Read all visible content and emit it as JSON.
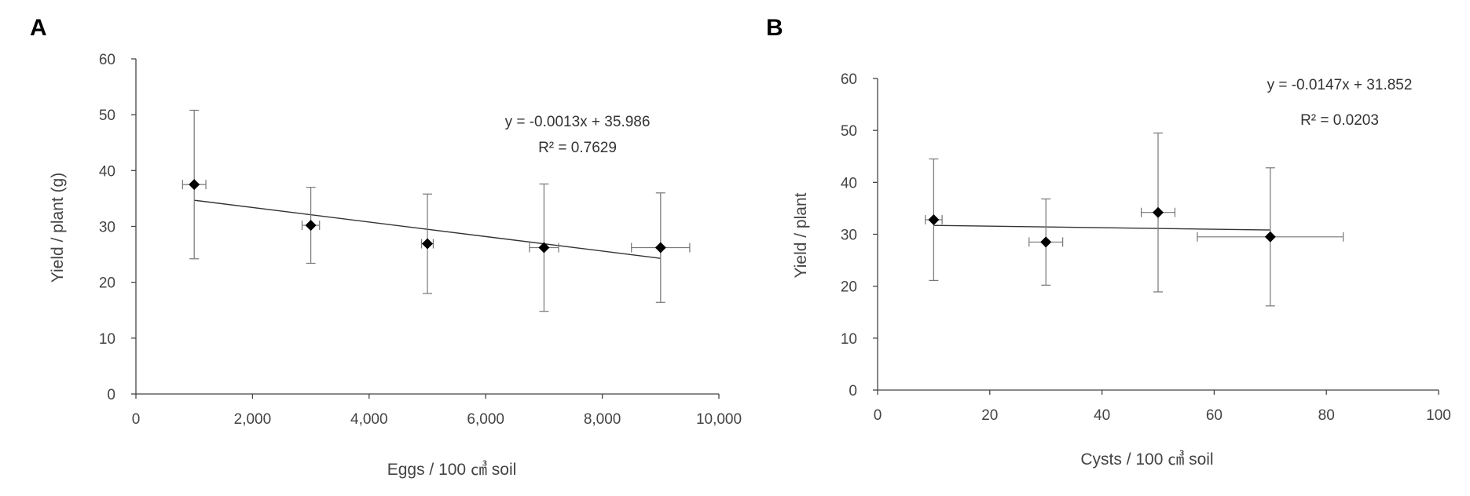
{
  "chart_data": [
    {
      "panel": "A",
      "type": "scatter",
      "xlabel": "Eggs / 100 ㎤ soil",
      "ylabel": "Yield / plant (g)",
      "xlim": [
        0,
        10000
      ],
      "ylim": [
        0,
        60
      ],
      "xticks": [
        0,
        2000,
        4000,
        6000,
        8000,
        10000
      ],
      "xtick_labels": [
        "0",
        "2,000",
        "4,000",
        "6,000",
        "8,000",
        "10,000"
      ],
      "yticks": [
        0,
        10,
        20,
        30,
        40,
        50,
        60
      ],
      "ytick_labels": [
        "0",
        "10",
        "20",
        "30",
        "40",
        "50",
        "60"
      ],
      "grid": false,
      "points": [
        {
          "x": 1000,
          "y": 37.5,
          "xerr": 200,
          "yerr": 13.3
        },
        {
          "x": 3000,
          "y": 30.2,
          "xerr": 150,
          "yerr": 6.8
        },
        {
          "x": 5000,
          "y": 26.9,
          "xerr": 100,
          "yerr": 8.9
        },
        {
          "x": 7000,
          "y": 26.2,
          "xerr": 250,
          "yerr": 11.4
        },
        {
          "x": 9000,
          "y": 26.2,
          "xerr": 500,
          "yerr": 9.8
        }
      ],
      "trendline": {
        "slope": -0.0013,
        "intercept": 35.986,
        "x_range": [
          1000,
          9000
        ]
      },
      "annotation": [
        "y = -0.0013x + 35.986",
        "R² = 0.7629"
      ]
    },
    {
      "panel": "B",
      "type": "scatter",
      "xlabel": "Cysts / 100 ㎤ soil",
      "ylabel": "Yield / plant",
      "xlim": [
        0,
        100
      ],
      "ylim": [
        0,
        60
      ],
      "xticks": [
        0,
        20,
        40,
        60,
        80,
        100
      ],
      "xtick_labels": [
        "0",
        "20",
        "40",
        "60",
        "80",
        "100"
      ],
      "yticks": [
        0,
        10,
        20,
        30,
        40,
        50,
        60
      ],
      "ytick_labels": [
        "0",
        "10",
        "20",
        "30",
        "40",
        "50",
        "60"
      ],
      "grid": false,
      "points": [
        {
          "x": 10,
          "y": 32.8,
          "xerr": 1.5,
          "yerr": 11.7
        },
        {
          "x": 30,
          "y": 28.5,
          "xerr": 3.0,
          "yerr": 8.3
        },
        {
          "x": 50,
          "y": 34.2,
          "xerr": 3.0,
          "yerr": 15.3
        },
        {
          "x": 70,
          "y": 29.5,
          "xerr": 13.0,
          "yerr": 13.3
        }
      ],
      "trendline": {
        "slope": -0.0147,
        "intercept": 31.852,
        "x_range": [
          10,
          70
        ]
      },
      "annotation": [
        "y = -0.0147x + 31.852",
        "R² = 0.0203"
      ]
    }
  ]
}
